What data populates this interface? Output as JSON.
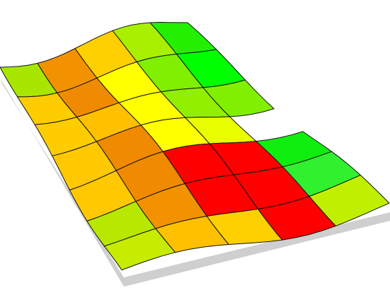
{
  "field_map": {
    "grid_colors": [
      [
        "#a8e600",
        "#f39200",
        "#ffd000",
        "#a8f000",
        "#22f000"
      ],
      [
        "#ffcc00",
        "#f08a00",
        "#ffff00",
        "#80f000",
        "#00ff00"
      ],
      [
        "#ffcc00",
        "#ffc000",
        "#ffff00",
        "#90f000",
        "#80f000"
      ],
      [
        "#ffc800",
        "#f08a00",
        "#ffff00",
        "#e8ff00",
        null
      ],
      [
        "#ffc800",
        "#f08a00",
        "#ff0000",
        "#ff0000",
        "#10ee10"
      ],
      [
        "#b8e800",
        "#f39200",
        "#ff0000",
        "#ff0000",
        "#30f030"
      ],
      [
        "#c8ec00",
        "#ffc000",
        "#ffd000",
        "#ff0000",
        "#c0f000"
      ]
    ]
  }
}
